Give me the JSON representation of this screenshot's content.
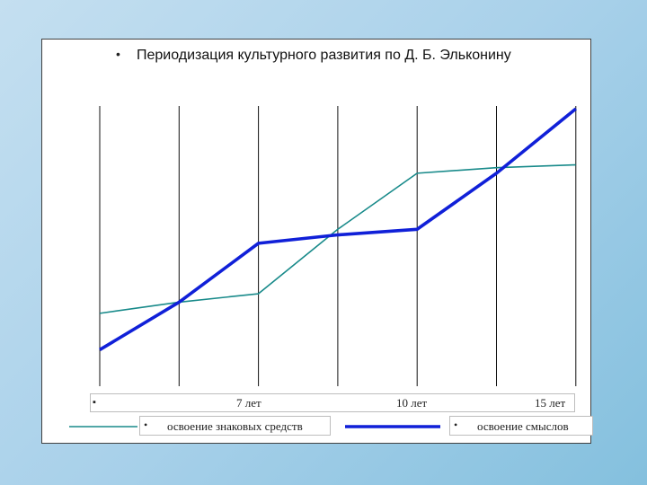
{
  "chart_data": {
    "type": "line",
    "title": "Периодизация культурного развития  по Д. Б. Эльконину",
    "x": [
      1,
      2,
      3,
      4,
      5,
      6,
      7
    ],
    "x_tick_labels": [
      "",
      "",
      "7 лет",
      "",
      "10 лет",
      "",
      "15 лет"
    ],
    "ylim": [
      0,
      10
    ],
    "grid": "vertical",
    "series": [
      {
        "name": "освоение знаковых средств",
        "color": "#188a8a",
        "values": [
          2.6,
          3.0,
          3.3,
          5.6,
          7.6,
          7.8,
          7.9
        ]
      },
      {
        "name": "освоение смыслов",
        "color": "#1020d8",
        "values": [
          1.3,
          3.0,
          5.1,
          5.4,
          5.6,
          7.6,
          9.9
        ]
      }
    ],
    "legend": "bottom"
  },
  "xaxis_bullet": "▪",
  "title_bullet": "•",
  "legend_bullet": "•"
}
